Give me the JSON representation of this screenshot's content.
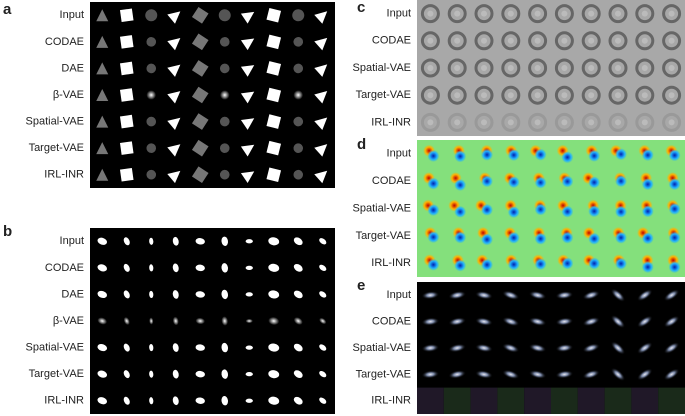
{
  "panels": [
    {
      "letter": "a",
      "rows": [
        "Input",
        "CODAE",
        "DAE",
        "β-VAE",
        "Spatial-VAE",
        "Target-VAE",
        "IRL-INR"
      ]
    },
    {
      "letter": "b",
      "rows": [
        "Input",
        "CODAE",
        "DAE",
        "β-VAE",
        "Spatial-VAE",
        "Target-VAE",
        "IRL-INR"
      ]
    },
    {
      "letter": "c",
      "rows": [
        "Input",
        "CODAE",
        "Spatial-VAE",
        "Target-VAE",
        "IRL-INR"
      ]
    },
    {
      "letter": "d",
      "rows": [
        "Input",
        "CODAE",
        "Spatial-VAE",
        "Target-VAE",
        "IRL-INR"
      ]
    },
    {
      "letter": "e",
      "rows": [
        "Input",
        "CODAE",
        "Spatial-VAE",
        "Target-VAE",
        "IRL-INR"
      ]
    }
  ]
}
